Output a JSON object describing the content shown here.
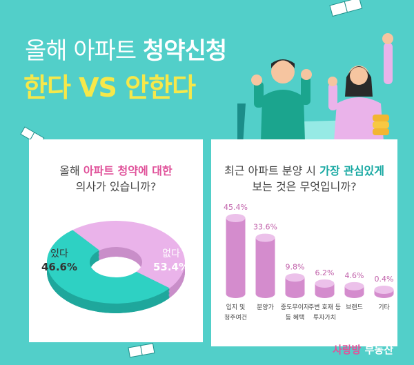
{
  "header": {
    "line1_light": "올해 아파트",
    "line1_bold": "청약신청",
    "line2": "한다 VS 안한다"
  },
  "left_panel": {
    "question_a": "올해",
    "question_highlight": "아파트 청약에 대한",
    "question_b": "의사가 있습니까?"
  },
  "right_panel": {
    "question_a": "최근 아파트 분양 시",
    "question_highlight": "가장 관심있게",
    "question_b": "보는 것은 무엇입니까?"
  },
  "logo": {
    "accent": "사랑방",
    "rest": "부동산"
  },
  "colors": {
    "teal": "#2ed1c3",
    "pink": "#eab3ea",
    "bar": "#d98fcf",
    "highlight_pink": "#e0529a"
  },
  "chart_data": [
    {
      "type": "pie",
      "labels": [
        "있다",
        "없다"
      ],
      "values": [
        46.6,
        53.4
      ],
      "value_labels": [
        "46.6%",
        "53.4%"
      ],
      "colors": [
        "#eab3ea",
        "#2ed1c3"
      ]
    },
    {
      "type": "bar",
      "categories": [
        "입지 및\n청주여건",
        "분양가",
        "중도무이자\n등 혜택",
        "주변 호재 등\n투자가치",
        "브랜드",
        "기타"
      ],
      "values": [
        45.4,
        33.6,
        9.8,
        6.2,
        4.6,
        0.4
      ],
      "value_labels": [
        "45.4%",
        "33.6%",
        "9.8%",
        "6.2%",
        "4.6%",
        "0.4%"
      ]
    }
  ]
}
